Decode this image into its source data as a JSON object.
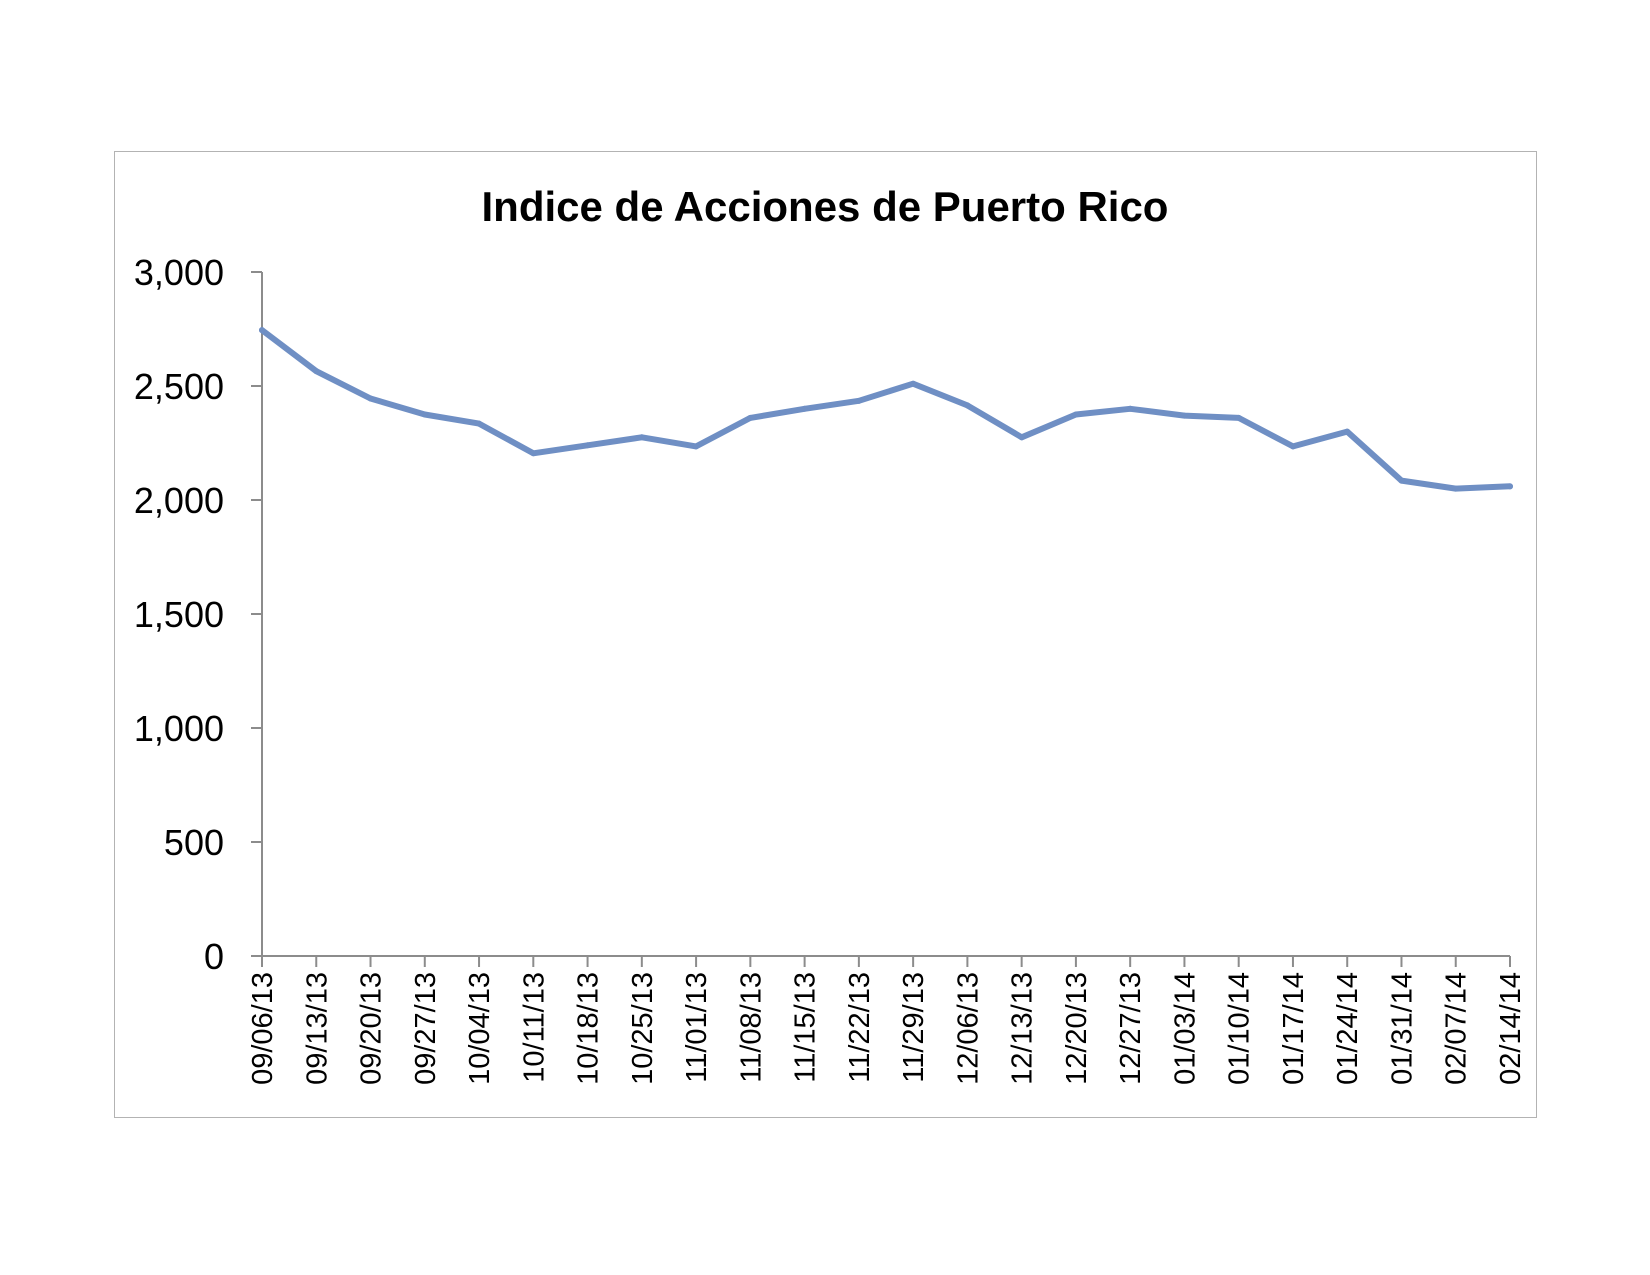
{
  "chart_data": {
    "type": "line",
    "title": "Indice de Acciones de Puerto Rico",
    "xlabel": "",
    "ylabel": "",
    "ylim": [
      0,
      3000
    ],
    "y_ticks": [
      0,
      500,
      1000,
      1500,
      2000,
      2500,
      3000
    ],
    "y_tick_labels": [
      "0",
      "500",
      "1,000",
      "1,500",
      "2,000",
      "2,500",
      "3,000"
    ],
    "categories": [
      "09/06/13",
      "09/13/13",
      "09/20/13",
      "09/27/13",
      "10/04/13",
      "10/11/13",
      "10/18/13",
      "10/25/13",
      "11/01/13",
      "11/08/13",
      "11/15/13",
      "11/22/13",
      "11/29/13",
      "12/06/13",
      "12/13/13",
      "12/20/13",
      "12/27/13",
      "01/03/14",
      "01/10/14",
      "01/17/14",
      "01/24/14",
      "01/31/14",
      "02/07/14",
      "02/14/14"
    ],
    "series": [
      {
        "values": [
          2745,
          2565,
          2445,
          2375,
          2335,
          2205,
          2240,
          2275,
          2235,
          2360,
          2400,
          2435,
          2510,
          2415,
          2275,
          2375,
          2400,
          2370,
          2360,
          2235,
          2300,
          2085,
          2050,
          2060
        ],
        "color": "#6f8fc4"
      }
    ],
    "grid": false,
    "legend": "none"
  }
}
